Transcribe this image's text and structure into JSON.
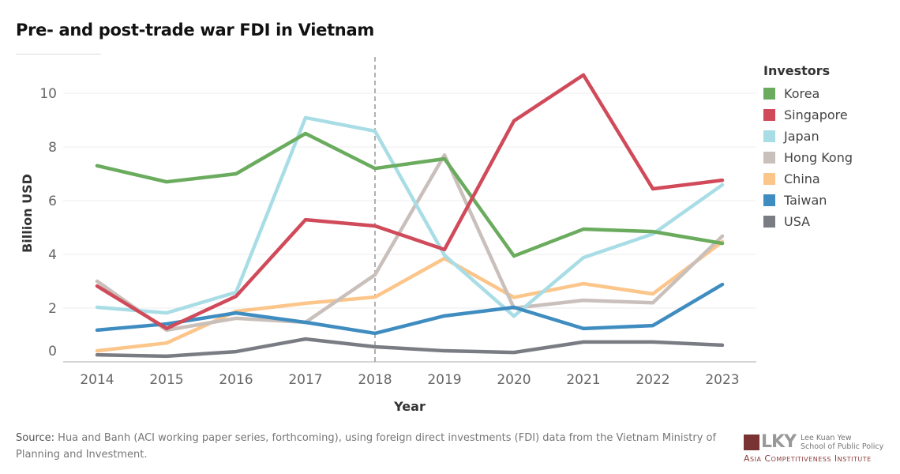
{
  "title": "Pre- and post-trade war FDI in Vietnam",
  "legend": {
    "title": "Investors"
  },
  "source": {
    "label": "Source:",
    "text": "Hua and Banh (ACI working paper series, forthcoming), using foreign direct investments (FDI) data from the Vietnam Ministry of Planning and Investment."
  },
  "logo": {
    "short": "LKY",
    "line1": "Lee Kuan Yew",
    "line2": "School of Public Policy",
    "line3": "Asia Competitiveness Institute"
  },
  "chart_data": {
    "type": "line",
    "xlabel": "Year",
    "ylabel": "Billion USD",
    "x": [
      "2014",
      "2015",
      "2016",
      "2017",
      "2018",
      "2019",
      "2020",
      "2021",
      "2022",
      "2023"
    ],
    "yticks": [
      0,
      2,
      4,
      6,
      8,
      10
    ],
    "ylim": [
      0,
      11.3
    ],
    "grid": true,
    "legend_position": "right",
    "annotation": {
      "type": "vertical-dashed-line",
      "x": "2018"
    },
    "series": [
      {
        "name": "Korea",
        "color": "#6aab5e",
        "values": [
          7.3,
          6.7,
          7.0,
          8.5,
          7.2,
          7.56,
          3.94,
          4.94,
          4.85,
          4.41
        ]
      },
      {
        "name": "Singapore",
        "color": "#d04a5a",
        "values": [
          2.82,
          1.24,
          2.44,
          5.29,
          5.06,
          4.18,
          8.97,
          10.68,
          6.44,
          6.76
        ]
      },
      {
        "name": "Japan",
        "color": "#a9dde6",
        "values": [
          2.03,
          1.82,
          2.59,
          9.09,
          8.59,
          3.97,
          1.7,
          3.88,
          4.76,
          6.59
        ]
      },
      {
        "name": "Hong Kong",
        "color": "#c9bfbb",
        "values": [
          3.0,
          1.18,
          1.62,
          1.47,
          3.24,
          7.7,
          2.0,
          2.29,
          2.2,
          4.68
        ]
      },
      {
        "name": "China",
        "color": "#fcc58a",
        "values": [
          0.41,
          0.7,
          1.88,
          2.18,
          2.41,
          3.85,
          2.4,
          2.91,
          2.53,
          4.47
        ]
      },
      {
        "name": "Taiwan",
        "color": "#3f8cc0",
        "values": [
          1.18,
          1.41,
          1.82,
          1.47,
          1.06,
          1.71,
          2.03,
          1.24,
          1.35,
          2.88
        ]
      },
      {
        "name": "USA",
        "color": "#7a7c84",
        "values": [
          0.26,
          0.21,
          0.38,
          0.85,
          0.56,
          0.41,
          0.35,
          0.74,
          0.74,
          0.62
        ]
      }
    ]
  }
}
